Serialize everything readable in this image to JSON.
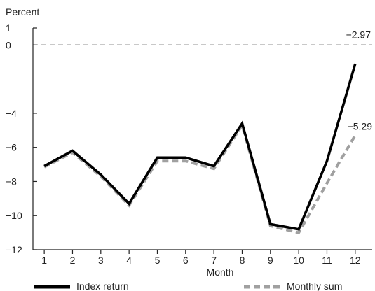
{
  "chart_data": {
    "type": "line",
    "title": "",
    "ylabel": "Percent",
    "xlabel": "Month",
    "x": [
      1,
      2,
      3,
      4,
      5,
      6,
      7,
      8,
      9,
      10,
      11,
      12
    ],
    "xlim": [
      0.6,
      12.6
    ],
    "ylim": [
      -12,
      1
    ],
    "y_ticks": [
      1,
      0,
      -4,
      -6,
      -8,
      -10,
      -12
    ],
    "y_tick_labels": [
      "1",
      "0",
      "−4",
      "−6",
      "−8",
      "−10",
      "−12"
    ],
    "reference_line": {
      "y": 0,
      "style": "dashed"
    },
    "legend_position": "bottom",
    "series": [
      {
        "name": "Index return",
        "style": "solid",
        "color": "#000000",
        "values": [
          -7.1,
          -6.2,
          -7.6,
          -9.3,
          -6.6,
          -6.6,
          -7.1,
          -4.6,
          -10.5,
          -10.8,
          -6.8,
          -1.1
        ]
      },
      {
        "name": "Monthly sum",
        "style": "dashed",
        "color": "#a0a0a0",
        "values": [
          -7.15,
          -6.3,
          -7.7,
          -9.4,
          -6.8,
          -6.8,
          -7.25,
          -4.7,
          -10.6,
          -11.0,
          -8.1,
          -5.29
        ]
      }
    ],
    "annotations": [
      {
        "text": "−2.97",
        "x": 12,
        "y": 0
      },
      {
        "text": "−5.29",
        "x": 12,
        "y": -5.29
      }
    ]
  }
}
